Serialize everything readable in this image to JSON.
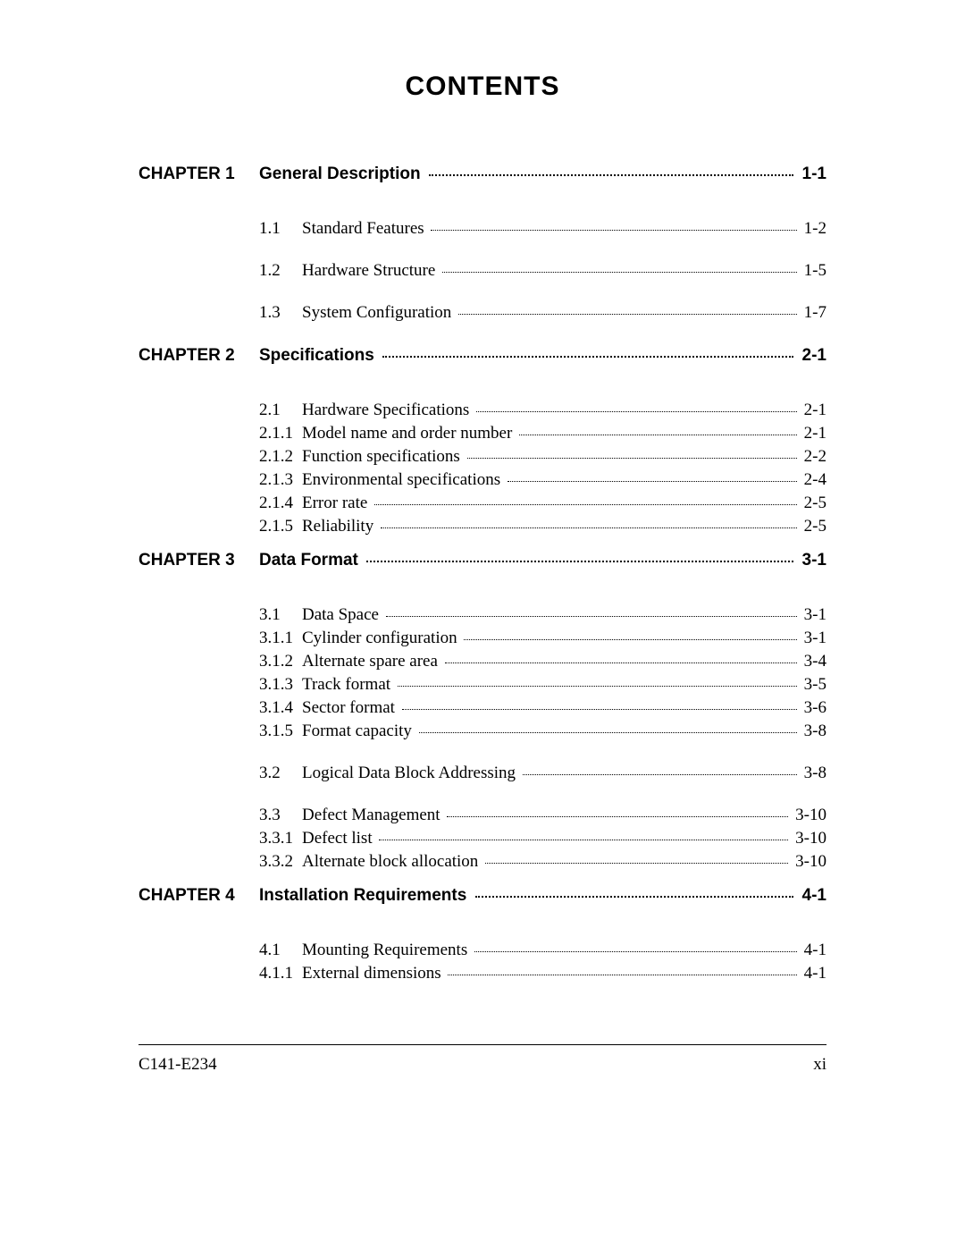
{
  "title": "CONTENTS",
  "footer": {
    "doc_id": "C141-E234",
    "page_num": "xi"
  },
  "chapters": [
    {
      "label": "CHAPTER 1",
      "title": "General Description",
      "page": "1-1",
      "sections": [
        {
          "num": "1.1",
          "title": "Standard Features",
          "page": "1-2",
          "subs": []
        },
        {
          "num": "1.2",
          "title": "Hardware Structure",
          "page": "1-5",
          "subs": []
        },
        {
          "num": "1.3",
          "title": "System Configuration",
          "page": "1-7",
          "subs": []
        }
      ]
    },
    {
      "label": "CHAPTER 2",
      "title": "Specifications",
      "page": "2-1",
      "sections": [
        {
          "num": "2.1",
          "title": "Hardware Specifications",
          "page": "2-1",
          "subs": [
            {
              "num": "2.1.1",
              "title": "Model name and order number",
              "page": "2-1"
            },
            {
              "num": "2.1.2",
              "title": "Function specifications",
              "page": "2-2"
            },
            {
              "num": "2.1.3",
              "title": "Environmental specifications",
              "page": "2-4"
            },
            {
              "num": "2.1.4",
              "title": "Error rate",
              "page": "2-5"
            },
            {
              "num": "2.1.5",
              "title": "Reliability",
              "page": "2-5"
            }
          ]
        }
      ]
    },
    {
      "label": "CHAPTER 3",
      "title": "Data Format",
      "page": "3-1",
      "sections": [
        {
          "num": "3.1",
          "title": "Data Space",
          "page": "3-1",
          "subs": [
            {
              "num": "3.1.1",
              "title": "Cylinder configuration",
              "page": "3-1"
            },
            {
              "num": "3.1.2",
              "title": "Alternate spare area",
              "page": "3-4"
            },
            {
              "num": "3.1.3",
              "title": "Track format",
              "page": "3-5"
            },
            {
              "num": "3.1.4",
              "title": "Sector format",
              "page": "3-6"
            },
            {
              "num": "3.1.5",
              "title": "Format capacity",
              "page": "3-8"
            }
          ]
        },
        {
          "num": "3.2",
          "title": "Logical Data Block Addressing",
          "page": "3-8",
          "subs": []
        },
        {
          "num": "3.3",
          "title": "Defect Management",
          "page": "3-10",
          "subs": [
            {
              "num": "3.3.1",
              "title": "Defect list",
              "page": "3-10"
            },
            {
              "num": "3.3.2",
              "title": "Alternate block allocation",
              "page": "3-10"
            }
          ]
        }
      ]
    },
    {
      "label": "CHAPTER 4",
      "title": "Installation Requirements",
      "page": "4-1",
      "sections": [
        {
          "num": "4.1",
          "title": "Mounting Requirements",
          "page": "4-1",
          "subs": [
            {
              "num": "4.1.1",
              "title": "External dimensions",
              "page": "4-1"
            }
          ]
        }
      ]
    }
  ]
}
